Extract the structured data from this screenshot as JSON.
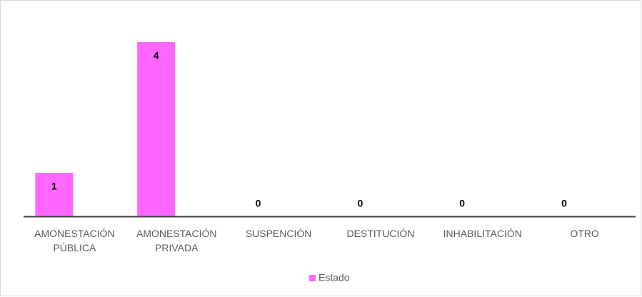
{
  "chart_data": {
    "type": "bar",
    "categories": [
      "AMONESTACIÓN PÚBLICA",
      "AMONESTACIÓN PRIVADA",
      "SUSPENCIÓN",
      "DESTITUCIÓN",
      "INHABILITACIÓN",
      "OTRO"
    ],
    "series": [
      {
        "name": "Estado",
        "color": "#ff66ff",
        "values": [
          1,
          4,
          0,
          0,
          0,
          0
        ]
      }
    ],
    "legend": "bottom"
  }
}
